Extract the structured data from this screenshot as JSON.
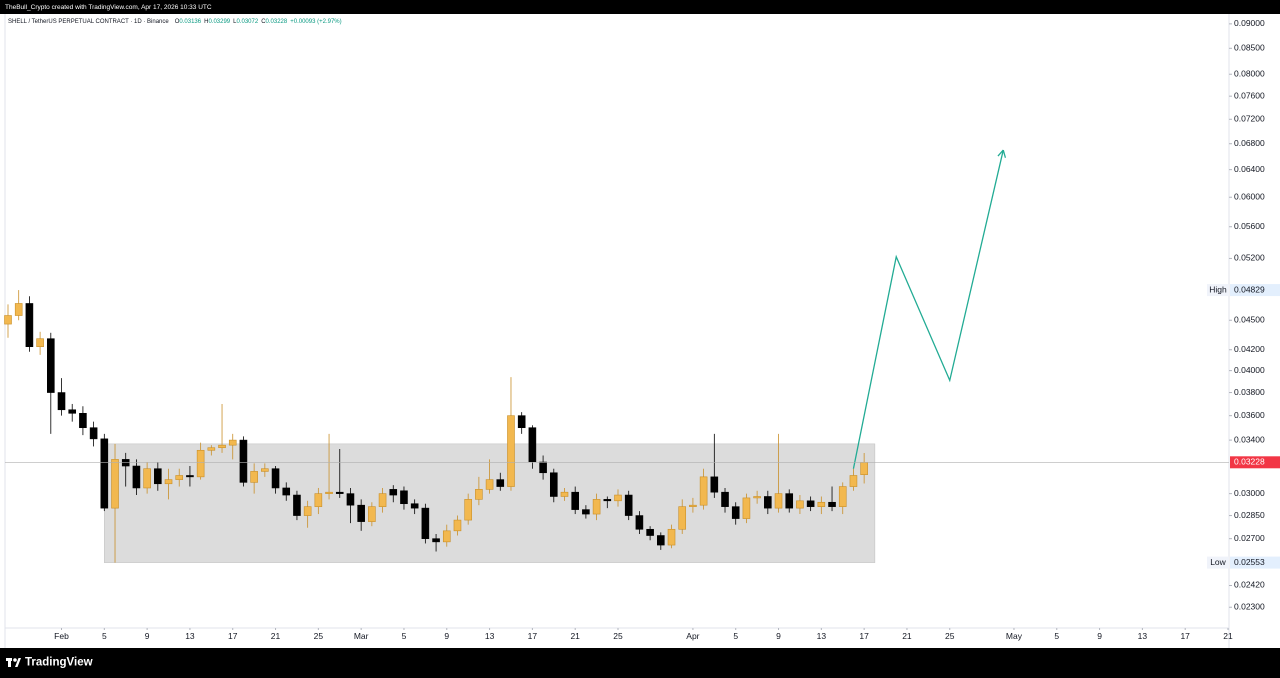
{
  "top_bar": {
    "text": "TheBull_Crypto created with TradingView.com, Apr 17, 2026 10:33 UTC"
  },
  "footer": {
    "brand": "TradingView"
  },
  "chart_data": {
    "type": "candlestick",
    "header": {
      "symbol": "SHELL / TetherUS PERPETUAL CONTRACT · 1D · Binance",
      "ohlc": [
        {
          "key": "O",
          "value": 0.03136
        },
        {
          "key": "H",
          "value": 0.03299
        },
        {
          "key": "L",
          "value": 0.03072
        },
        {
          "key": "C",
          "value": 0.03228
        }
      ],
      "change": "+0.00093 (+2.97%)"
    },
    "log_scale": true,
    "grid": false,
    "up_color": "#f2b84f",
    "up_border": "#c98f28",
    "down_color": "#000000",
    "x": [
      "2026-01-27",
      "2026-01-28",
      "2026-01-29",
      "2026-01-30",
      "2026-01-31",
      "2026-02-01",
      "2026-02-02",
      "2026-02-03",
      "2026-02-04",
      "2026-02-05",
      "2026-02-06",
      "2026-02-07",
      "2026-02-08",
      "2026-02-09",
      "2026-02-10",
      "2026-02-11",
      "2026-02-12",
      "2026-02-13",
      "2026-02-14",
      "2026-02-15",
      "2026-02-16",
      "2026-02-17",
      "2026-02-18",
      "2026-02-19",
      "2026-02-20",
      "2026-02-21",
      "2026-02-22",
      "2026-02-23",
      "2026-02-24",
      "2026-02-25",
      "2026-02-26",
      "2026-02-27",
      "2026-02-28",
      "2026-03-01",
      "2026-03-02",
      "2026-03-03",
      "2026-03-04",
      "2026-03-05",
      "2026-03-06",
      "2026-03-07",
      "2026-03-08",
      "2026-03-09",
      "2026-03-10",
      "2026-03-11",
      "2026-03-12",
      "2026-03-13",
      "2026-03-14",
      "2026-03-15",
      "2026-03-16",
      "2026-03-17",
      "2026-03-18",
      "2026-03-19",
      "2026-03-20",
      "2026-03-21",
      "2026-03-22",
      "2026-03-23",
      "2026-03-24",
      "2026-03-25",
      "2026-03-26",
      "2026-03-27",
      "2026-03-28",
      "2026-03-29",
      "2026-03-30",
      "2026-03-31",
      "2026-04-01",
      "2026-04-02",
      "2026-04-03",
      "2026-04-04",
      "2026-04-05",
      "2026-04-06",
      "2026-04-07",
      "2026-04-08",
      "2026-04-09",
      "2026-04-10",
      "2026-04-11",
      "2026-04-12",
      "2026-04-13",
      "2026-04-14",
      "2026-04-15",
      "2026-04-16",
      "2026-04-17"
    ],
    "open": [
      0.0446,
      0.0455,
      0.0468,
      0.0423,
      0.0431,
      0.038,
      0.0365,
      0.0362,
      0.035,
      0.0341,
      0.029,
      0.0325,
      0.032,
      0.0304,
      0.0318,
      0.0307,
      0.031,
      0.0313,
      0.0312,
      0.0332,
      0.0334,
      0.0336,
      0.034,
      0.0308,
      0.0316,
      0.0318,
      0.0304,
      0.0299,
      0.0285,
      0.0291,
      0.03,
      0.0301,
      0.03,
      0.0292,
      0.0281,
      0.0291,
      0.0303,
      0.0302,
      0.0293,
      0.029,
      0.027,
      0.0268,
      0.0275,
      0.0282,
      0.0296,
      0.0303,
      0.031,
      0.0305,
      0.036,
      0.035,
      0.0323,
      0.0315,
      0.0298,
      0.0301,
      0.0289,
      0.0286,
      0.0296,
      0.0295,
      0.0299,
      0.0285,
      0.0276,
      0.0272,
      0.0266,
      0.0276,
      0.0291,
      0.0292,
      0.0312,
      0.0301,
      0.0291,
      0.0283,
      0.0297,
      0.0298,
      0.029,
      0.03,
      0.029,
      0.0295,
      0.0291,
      0.0294,
      0.0291,
      0.0305,
      0.03136
    ],
    "high": [
      0.0467,
      0.04829,
      0.0476,
      0.0438,
      0.0437,
      0.0393,
      0.037,
      0.0368,
      0.0355,
      0.0345,
      0.0337,
      0.033,
      0.0325,
      0.0323,
      0.0323,
      0.0318,
      0.0318,
      0.032,
      0.0338,
      0.0336,
      0.037,
      0.0345,
      0.0343,
      0.0322,
      0.0322,
      0.032,
      0.0308,
      0.0302,
      0.0295,
      0.0304,
      0.0345,
      0.0333,
      0.0304,
      0.0296,
      0.0294,
      0.0304,
      0.0306,
      0.0305,
      0.0296,
      0.0293,
      0.0273,
      0.0279,
      0.0285,
      0.03,
      0.0312,
      0.0325,
      0.0315,
      0.0394,
      0.0363,
      0.0352,
      0.0328,
      0.0318,
      0.0304,
      0.0305,
      0.0292,
      0.03,
      0.0298,
      0.0303,
      0.0302,
      0.0288,
      0.0278,
      0.0274,
      0.0279,
      0.0296,
      0.0297,
      0.0318,
      0.0345,
      0.0304,
      0.0294,
      0.03,
      0.0302,
      0.0302,
      0.0345,
      0.0303,
      0.0299,
      0.0298,
      0.0298,
      0.0305,
      0.0308,
      0.0318,
      0.03299
    ],
    "low": [
      0.0432,
      0.045,
      0.0418,
      0.0415,
      0.0345,
      0.036,
      0.0355,
      0.0344,
      0.0335,
      0.0288,
      0.02553,
      0.0305,
      0.0299,
      0.03,
      0.0302,
      0.0296,
      0.0305,
      0.0305,
      0.031,
      0.0328,
      0.033,
      0.0325,
      0.0305,
      0.03,
      0.0312,
      0.03,
      0.0295,
      0.0282,
      0.0277,
      0.0286,
      0.0296,
      0.0297,
      0.028,
      0.0275,
      0.0278,
      0.0287,
      0.0294,
      0.0289,
      0.0286,
      0.0267,
      0.0262,
      0.0265,
      0.0272,
      0.0279,
      0.0292,
      0.03,
      0.0302,
      0.0302,
      0.0345,
      0.0318,
      0.031,
      0.0294,
      0.0295,
      0.0286,
      0.0283,
      0.0282,
      0.029,
      0.0291,
      0.0282,
      0.0273,
      0.0269,
      0.0263,
      0.0264,
      0.0273,
      0.0287,
      0.0289,
      0.0297,
      0.0287,
      0.0279,
      0.028,
      0.0293,
      0.0286,
      0.0287,
      0.0287,
      0.0286,
      0.0288,
      0.0286,
      0.0288,
      0.0286,
      0.0302,
      0.03072
    ],
    "close": [
      0.0455,
      0.0468,
      0.0423,
      0.0431,
      0.038,
      0.0365,
      0.0362,
      0.035,
      0.0341,
      0.029,
      0.0325,
      0.032,
      0.0304,
      0.0318,
      0.0307,
      0.031,
      0.0313,
      0.0312,
      0.0332,
      0.0334,
      0.0336,
      0.034,
      0.0308,
      0.0316,
      0.0318,
      0.0304,
      0.0299,
      0.0285,
      0.0291,
      0.03,
      0.0301,
      0.03,
      0.0292,
      0.0281,
      0.0291,
      0.03,
      0.0299,
      0.0293,
      0.029,
      0.027,
      0.0268,
      0.0275,
      0.0282,
      0.0296,
      0.0303,
      0.031,
      0.0305,
      0.036,
      0.035,
      0.0323,
      0.0315,
      0.0298,
      0.0301,
      0.0289,
      0.0286,
      0.0296,
      0.0295,
      0.0299,
      0.0285,
      0.0276,
      0.0272,
      0.0266,
      0.0276,
      0.0291,
      0.0292,
      0.0312,
      0.0301,
      0.0291,
      0.0283,
      0.0297,
      0.0298,
      0.029,
      0.03,
      0.029,
      0.0295,
      0.0291,
      0.0294,
      0.0291,
      0.0305,
      0.0313,
      0.03228
    ],
    "xlim": [
      "2026-01-27",
      "2026-05-21"
    ],
    "xticks": [
      {
        "value": "2026-02-01",
        "label": "Feb"
      },
      {
        "value": "2026-02-05",
        "label": "5"
      },
      {
        "value": "2026-02-09",
        "label": "9"
      },
      {
        "value": "2026-02-13",
        "label": "13"
      },
      {
        "value": "2026-02-17",
        "label": "17"
      },
      {
        "value": "2026-02-21",
        "label": "21"
      },
      {
        "value": "2026-02-25",
        "label": "25"
      },
      {
        "value": "2026-03-01",
        "label": "Mar"
      },
      {
        "value": "2026-03-05",
        "label": "5"
      },
      {
        "value": "2026-03-09",
        "label": "9"
      },
      {
        "value": "2026-03-13",
        "label": "13"
      },
      {
        "value": "2026-03-17",
        "label": "17"
      },
      {
        "value": "2026-03-21",
        "label": "21"
      },
      {
        "value": "2026-03-25",
        "label": "25"
      },
      {
        "value": "2026-04-01",
        "label": "Apr"
      },
      {
        "value": "2026-04-05",
        "label": "5"
      },
      {
        "value": "2026-04-09",
        "label": "9"
      },
      {
        "value": "2026-04-13",
        "label": "13"
      },
      {
        "value": "2026-04-17",
        "label": "17"
      },
      {
        "value": "2026-04-21",
        "label": "21"
      },
      {
        "value": "2026-04-25",
        "label": "25"
      },
      {
        "value": "2026-05-01",
        "label": "May"
      },
      {
        "value": "2026-05-05",
        "label": "5"
      },
      {
        "value": "2026-05-09",
        "label": "9"
      },
      {
        "value": "2026-05-13",
        "label": "13"
      },
      {
        "value": "2026-05-17",
        "label": "17"
      },
      {
        "value": "2026-05-21",
        "label": "21"
      }
    ],
    "ylim": [
      0.02191,
      0.0921
    ],
    "yticks": [
      {
        "value": 0.09,
        "label": "0.09000"
      },
      {
        "value": 0.085,
        "label": "0.08500"
      },
      {
        "value": 0.08,
        "label": "0.08000"
      },
      {
        "value": 0.076,
        "label": "0.07600"
      },
      {
        "value": 0.072,
        "label": "0.07200"
      },
      {
        "value": 0.068,
        "label": "0.06800"
      },
      {
        "value": 0.064,
        "label": "0.06400"
      },
      {
        "value": 0.06,
        "label": "0.06000"
      },
      {
        "value": 0.056,
        "label": "0.05600"
      },
      {
        "value": 0.052,
        "label": "0.05200"
      },
      {
        "value": 0.045,
        "label": "0.04500"
      },
      {
        "value": 0.042,
        "label": "0.04200"
      },
      {
        "value": 0.04,
        "label": "0.04000"
      },
      {
        "value": 0.038,
        "label": "0.03800"
      },
      {
        "value": 0.036,
        "label": "0.03600"
      },
      {
        "value": 0.034,
        "label": "0.03400"
      },
      {
        "value": 0.03,
        "label": "0.03000"
      },
      {
        "value": 0.0285,
        "label": "0.02850"
      },
      {
        "value": 0.027,
        "label": "0.02700"
      },
      {
        "value": 0.0242,
        "label": "0.02420"
      },
      {
        "value": 0.023,
        "label": "0.02300"
      }
    ],
    "price_labels": [
      {
        "label": "High",
        "value": 0.04829
      },
      {
        "label": "Low",
        "value": 0.02553
      },
      {
        "value": 0.03228,
        "color": "#f23645"
      }
    ],
    "annotations": {
      "range_box": {
        "x": [
          "2026-02-05",
          "2026-04-18"
        ],
        "y": [
          0.02553,
          0.0337
        ],
        "color": "#d6d6d6"
      },
      "projection": {
        "x": [
          "2026-04-16",
          "2026-04-20",
          "2026-04-25",
          "2026-04-30"
        ],
        "y": [
          0.0318,
          0.0522,
          0.0391,
          0.067
        ],
        "color": "#22ab94"
      }
    }
  }
}
